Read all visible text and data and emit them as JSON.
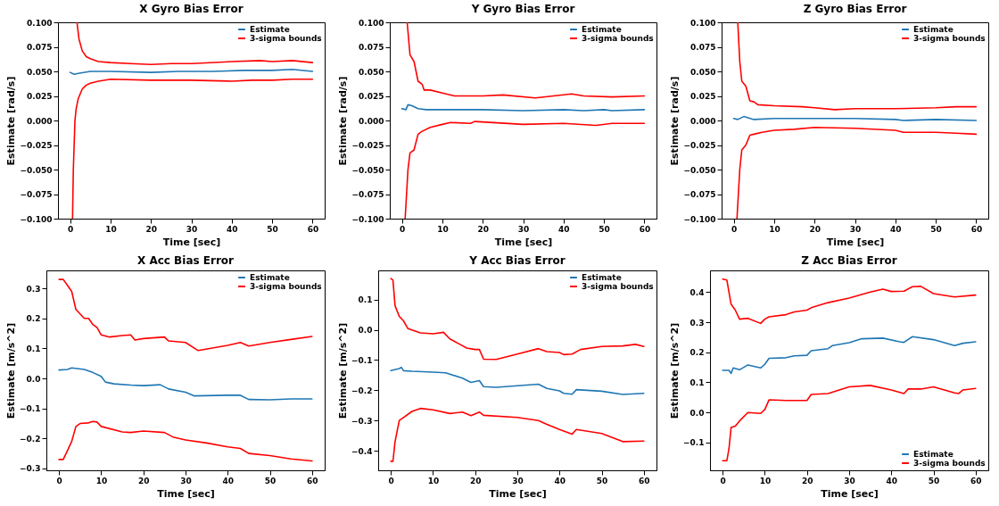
{
  "chart_data": [
    {
      "type": "line",
      "title": "X Gyro Bias Error",
      "xlabel": "Time [sec]",
      "ylabel": "Estimate [rad/s]",
      "legend": "top right",
      "xlim": [
        -3,
        63
      ],
      "xticks": [
        0,
        10,
        20,
        30,
        40,
        50,
        60
      ],
      "ylim": [
        -0.1,
        0.1
      ],
      "yticks": [
        {
          "value": -0.1,
          "label": "−0.100"
        },
        {
          "value": -0.075,
          "label": "−0.075"
        },
        {
          "value": -0.05,
          "label": "−0.050"
        },
        {
          "value": -0.025,
          "label": "−0.025"
        },
        {
          "value": 0,
          "label": "0.000"
        },
        {
          "value": 0.025,
          "label": "0.025"
        },
        {
          "value": 0.05,
          "label": "0.050"
        },
        {
          "value": 0.075,
          "label": "0.075"
        },
        {
          "value": 0.1,
          "label": "0.100"
        }
      ],
      "series": [
        {
          "name": "Estimate",
          "color": "#1f77b4",
          "x": [
            0,
            1,
            2,
            5,
            10,
            20,
            27,
            35,
            43,
            50,
            55,
            60
          ],
          "values": [
            0.049,
            0.047,
            0.048,
            0.05,
            0.05,
            0.049,
            0.05,
            0.05,
            0.051,
            0.051,
            0.052,
            0.05
          ]
        },
        {
          "name": "3-sigma bounds",
          "color": "#ff0000",
          "x": [
            1.7,
            2.2,
            3,
            4,
            5,
            7,
            10,
            15,
            20,
            25,
            30,
            40,
            47,
            50,
            55,
            60
          ],
          "values": [
            0.1,
            0.083,
            0.071,
            0.065,
            0.063,
            0.06,
            0.059,
            0.058,
            0.057,
            0.058,
            0.058,
            0.06,
            0.061,
            0.06,
            0.061,
            0.059
          ]
        },
        {
          "color": "#ff0000",
          "x": [
            0.6,
            0.8,
            1.2,
            1.5,
            2,
            3,
            4,
            5,
            7,
            10,
            20,
            30,
            40,
            45,
            50,
            55,
            60
          ],
          "values": [
            -0.1,
            -0.05,
            0,
            0.012,
            0.022,
            0.032,
            0.036,
            0.038,
            0.04,
            0.042,
            0.041,
            0.041,
            0.04,
            0.041,
            0.041,
            0.042,
            0.042
          ]
        }
      ]
    },
    {
      "type": "line",
      "title": "Y Gyro Bias Error",
      "xlabel": "Time [sec]",
      "ylabel": "Estimate [rad/s]",
      "legend": "top right",
      "xlim": [
        -3,
        63
      ],
      "xticks": [
        0,
        10,
        20,
        30,
        40,
        50,
        60
      ],
      "ylim": [
        -0.1,
        0.1
      ],
      "yticks": [
        {
          "value": -0.1,
          "label": "−0.100"
        },
        {
          "value": -0.075,
          "label": "−0.075"
        },
        {
          "value": -0.05,
          "label": "−0.050"
        },
        {
          "value": -0.025,
          "label": "−0.025"
        },
        {
          "value": 0,
          "label": "0.000"
        },
        {
          "value": 0.025,
          "label": "0.025"
        },
        {
          "value": 0.05,
          "label": "0.050"
        },
        {
          "value": 0.075,
          "label": "0.075"
        },
        {
          "value": 0.1,
          "label": "0.100"
        }
      ],
      "series": [
        {
          "name": "Estimate",
          "color": "#1f77b4",
          "x": [
            0,
            1,
            1.5,
            2.5,
            4,
            6,
            10,
            20,
            30,
            40,
            45,
            50,
            52,
            60
          ],
          "values": [
            0.012,
            0.011,
            0.016,
            0.015,
            0.012,
            0.011,
            0.011,
            0.011,
            0.01,
            0.011,
            0.01,
            0.011,
            0.01,
            0.011
          ]
        },
        {
          "name": "3-sigma bounds",
          "color": "#ff0000",
          "x": [
            1.3,
            2,
            3,
            3.5,
            4,
            5,
            5.5,
            7,
            10,
            13,
            20,
            25,
            33,
            42,
            45,
            52,
            60
          ],
          "values": [
            0.1,
            0.067,
            0.06,
            0.05,
            0.04,
            0.037,
            0.031,
            0.031,
            0.028,
            0.025,
            0.025,
            0.026,
            0.023,
            0.027,
            0.025,
            0.024,
            0.025
          ]
        },
        {
          "color": "#ff0000",
          "x": [
            0.8,
            1.5,
            2,
            3,
            4,
            5,
            7,
            10,
            12,
            17,
            18,
            30,
            40,
            48,
            52,
            60
          ],
          "values": [
            -0.1,
            -0.05,
            -0.033,
            -0.03,
            -0.014,
            -0.011,
            -0.007,
            -0.004,
            -0.002,
            -0.003,
            -0.001,
            -0.004,
            -0.003,
            -0.005,
            -0.003,
            -0.003
          ]
        }
      ]
    },
    {
      "type": "line",
      "title": "Z Gyro Bias Error",
      "xlabel": "Time [sec]",
      "ylabel": "Estimate [rad/s]",
      "legend": "top right",
      "xlim": [
        -3,
        63
      ],
      "xticks": [
        0,
        10,
        20,
        30,
        40,
        50,
        60
      ],
      "ylim": [
        -0.1,
        0.1
      ],
      "yticks": [
        {
          "value": -0.1,
          "label": "−0.100"
        },
        {
          "value": -0.075,
          "label": "−0.075"
        },
        {
          "value": -0.05,
          "label": "−0.050"
        },
        {
          "value": -0.025,
          "label": "−0.025"
        },
        {
          "value": 0,
          "label": "0.000"
        },
        {
          "value": 0.025,
          "label": "0.025"
        },
        {
          "value": 0.05,
          "label": "0.050"
        },
        {
          "value": 0.075,
          "label": "0.075"
        },
        {
          "value": 0.1,
          "label": "0.100"
        }
      ],
      "series": [
        {
          "name": "Estimate",
          "color": "#1f77b4",
          "x": [
            0,
            1,
            2.5,
            5,
            10,
            20,
            30,
            40,
            42,
            50,
            60
          ],
          "values": [
            0.002,
            0.001,
            0.004,
            0.001,
            0.002,
            0.002,
            0.002,
            0.001,
            0,
            0.001,
            0
          ]
        },
        {
          "name": "3-sigma bounds",
          "color": "#ff0000",
          "x": [
            1,
            1.5,
            2,
            3,
            4,
            5,
            6,
            10,
            17,
            20,
            25,
            30,
            40,
            50,
            55,
            60
          ],
          "values": [
            0.1,
            0.06,
            0.04,
            0.035,
            0.02,
            0.019,
            0.016,
            0.015,
            0.014,
            0.013,
            0.011,
            0.012,
            0.012,
            0.013,
            0.014,
            0.014
          ]
        },
        {
          "color": "#ff0000",
          "x": [
            0.8,
            1.5,
            2,
            3,
            4,
            5,
            7,
            10,
            15,
            20,
            30,
            40,
            42,
            50,
            55,
            60
          ],
          "values": [
            -0.1,
            -0.05,
            -0.03,
            -0.025,
            -0.015,
            -0.014,
            -0.012,
            -0.01,
            -0.009,
            -0.007,
            -0.008,
            -0.01,
            -0.012,
            -0.012,
            -0.013,
            -0.014
          ]
        }
      ]
    },
    {
      "type": "line",
      "title": "X Acc Bias Error",
      "xlabel": "Time [sec]",
      "ylabel": "Estimate [m/s^2]",
      "legend": "top right",
      "xlim": [
        -3,
        63
      ],
      "xticks": [
        0,
        10,
        20,
        30,
        40,
        50,
        60
      ],
      "ylim": [
        -0.306,
        0.36
      ],
      "yticks": [
        {
          "value": -0.3,
          "label": "−0.3"
        },
        {
          "value": -0.2,
          "label": "−0.2"
        },
        {
          "value": -0.1,
          "label": "−0.1"
        },
        {
          "value": 0,
          "label": "0.0"
        },
        0.1,
        0.2,
        0.3
      ],
      "series": [
        {
          "name": "Estimate",
          "color": "#1f77b4",
          "x": [
            0,
            2,
            3,
            6,
            8,
            10,
            11,
            13,
            17,
            20,
            24,
            26,
            30,
            32,
            40,
            43,
            45,
            50,
            55,
            60
          ],
          "values": [
            0.028,
            0.03,
            0.035,
            0.03,
            0.02,
            0.007,
            -0.012,
            -0.018,
            -0.022,
            -0.024,
            -0.021,
            -0.035,
            -0.046,
            -0.058,
            -0.056,
            -0.056,
            -0.07,
            -0.071,
            -0.068,
            -0.068
          ]
        },
        {
          "name": "3-sigma bounds",
          "color": "#ff0000",
          "x": [
            0,
            1,
            2,
            3,
            4,
            5,
            6,
            7,
            8,
            9,
            10,
            12,
            15,
            17,
            18,
            20,
            25,
            26,
            30,
            33,
            40,
            43,
            45,
            50,
            55,
            60
          ],
          "values": [
            0.33,
            0.33,
            0.31,
            0.29,
            0.23,
            0.215,
            0.2,
            0.2,
            0.18,
            0.17,
            0.145,
            0.138,
            0.143,
            0.145,
            0.128,
            0.133,
            0.138,
            0.125,
            0.12,
            0.093,
            0.11,
            0.12,
            0.108,
            0.12,
            0.13,
            0.14
          ]
        },
        {
          "color": "#ff0000",
          "x": [
            0,
            1,
            2,
            3,
            4,
            5,
            7,
            8,
            9,
            10,
            15,
            17,
            20,
            25,
            27,
            30,
            35,
            40,
            43,
            45,
            50,
            55,
            60
          ],
          "values": [
            -0.27,
            -0.27,
            -0.24,
            -0.21,
            -0.16,
            -0.15,
            -0.148,
            -0.143,
            -0.145,
            -0.16,
            -0.178,
            -0.18,
            -0.175,
            -0.18,
            -0.195,
            -0.205,
            -0.215,
            -0.228,
            -0.233,
            -0.25,
            -0.257,
            -0.268,
            -0.275
          ]
        }
      ]
    },
    {
      "type": "line",
      "title": "Y Acc Bias Error",
      "xlabel": "Time [sec]",
      "ylabel": "Estimate [m/s^2]",
      "legend": "top right",
      "xlim": [
        -3,
        63
      ],
      "xticks": [
        0,
        10,
        20,
        30,
        40,
        50,
        60
      ],
      "ylim": [
        -0.465,
        0.197
      ],
      "yticks": [
        {
          "value": -0.4,
          "label": "−0.4"
        },
        {
          "value": -0.3,
          "label": "−0.3"
        },
        {
          "value": -0.2,
          "label": "−0.2"
        },
        {
          "value": -0.1,
          "label": "−0.1"
        },
        {
          "value": 0,
          "label": "0.0"
        },
        0.1
      ],
      "series": [
        {
          "name": "Estimate",
          "color": "#1f77b4",
          "x": [
            0,
            2,
            2.5,
            3,
            5,
            10,
            13,
            17,
            19,
            21,
            22,
            25,
            30,
            35,
            37,
            40,
            41,
            43,
            44,
            50,
            55,
            60
          ],
          "values": [
            -0.135,
            -0.128,
            -0.124,
            -0.135,
            -0.137,
            -0.14,
            -0.142,
            -0.16,
            -0.174,
            -0.168,
            -0.188,
            -0.19,
            -0.185,
            -0.18,
            -0.194,
            -0.202,
            -0.21,
            -0.213,
            -0.198,
            -0.203,
            -0.214,
            -0.21
          ]
        },
        {
          "name": "3-sigma bounds",
          "color": "#ff0000",
          "x": [
            0,
            0.5,
            1,
            2,
            3,
            4,
            5,
            7,
            10,
            12.5,
            14,
            16,
            18,
            20,
            21,
            22,
            25,
            30,
            35,
            37,
            40,
            41,
            43,
            45,
            50,
            55,
            58,
            60
          ],
          "values": [
            0.17,
            0.165,
            0.08,
            0.045,
            0.03,
            0.005,
            0,
            -0.01,
            -0.013,
            -0.008,
            -0.03,
            -0.045,
            -0.06,
            -0.065,
            -0.065,
            -0.097,
            -0.098,
            -0.08,
            -0.062,
            -0.072,
            -0.075,
            -0.082,
            -0.08,
            -0.065,
            -0.055,
            -0.053,
            -0.048,
            -0.055
          ]
        },
        {
          "color": "#ff0000",
          "x": [
            0,
            0.5,
            1,
            2,
            3,
            5,
            7,
            10,
            14,
            17,
            19,
            21,
            22,
            30,
            35,
            37,
            40,
            43,
            44,
            50,
            55,
            60
          ],
          "values": [
            -0.435,
            -0.435,
            -0.37,
            -0.3,
            -0.29,
            -0.27,
            -0.26,
            -0.265,
            -0.277,
            -0.272,
            -0.284,
            -0.272,
            -0.283,
            -0.29,
            -0.3,
            -0.313,
            -0.33,
            -0.345,
            -0.33,
            -0.343,
            -0.37,
            -0.368
          ]
        }
      ]
    },
    {
      "type": "line",
      "title": "Z Acc Bias Error",
      "xlabel": "Time [sec]",
      "ylabel": "Estimate [m/s^2]",
      "legend": "bottom right",
      "xlim": [
        -3,
        63
      ],
      "xticks": [
        0,
        10,
        20,
        30,
        40,
        50,
        60
      ],
      "ylim": [
        -0.192,
        0.472
      ],
      "yticks": [
        {
          "value": -0.1,
          "label": "−0.1"
        },
        {
          "value": 0,
          "label": "0.0"
        },
        0.1,
        0.2,
        0.3,
        0.4
      ],
      "series": [
        {
          "name": "Estimate",
          "color": "#1f77b4",
          "x": [
            0,
            1.5,
            2,
            2.5,
            4,
            6,
            9,
            10,
            11,
            15,
            17,
            20,
            21,
            25,
            26,
            30,
            33,
            38,
            42,
            43,
            45,
            50,
            55,
            57,
            60
          ],
          "values": [
            0.14,
            0.14,
            0.13,
            0.148,
            0.142,
            0.158,
            0.148,
            0.16,
            0.18,
            0.182,
            0.188,
            0.19,
            0.205,
            0.212,
            0.222,
            0.232,
            0.245,
            0.247,
            0.235,
            0.233,
            0.252,
            0.242,
            0.222,
            0.23,
            0.235
          ]
        },
        {
          "name": "3-sigma bounds",
          "color": "#ff0000",
          "x": [
            0,
            1,
            2,
            3,
            4,
            6,
            9,
            10,
            11,
            15,
            17,
            20,
            21,
            25,
            30,
            35,
            38,
            40,
            43,
            45,
            47,
            50,
            55,
            60
          ],
          "values": [
            0.443,
            0.44,
            0.36,
            0.34,
            0.31,
            0.313,
            0.296,
            0.31,
            0.318,
            0.325,
            0.334,
            0.34,
            0.348,
            0.365,
            0.38,
            0.4,
            0.41,
            0.402,
            0.403,
            0.418,
            0.419,
            0.395,
            0.384,
            0.39
          ]
        },
        {
          "color": "#ff0000",
          "x": [
            0,
            1,
            1.5,
            2,
            3,
            4,
            6,
            9,
            10,
            11,
            15,
            20,
            21,
            25,
            27,
            30,
            35,
            40,
            43,
            44,
            47,
            50,
            55,
            56,
            57,
            60
          ],
          "values": [
            -0.16,
            -0.16,
            -0.12,
            -0.05,
            -0.045,
            -0.028,
            0,
            -0.003,
            0.01,
            0.042,
            0.04,
            0.04,
            0.06,
            0.063,
            0.072,
            0.085,
            0.09,
            0.075,
            0.063,
            0.078,
            0.078,
            0.085,
            0.065,
            0.063,
            0.075,
            0.08
          ]
        }
      ]
    }
  ]
}
